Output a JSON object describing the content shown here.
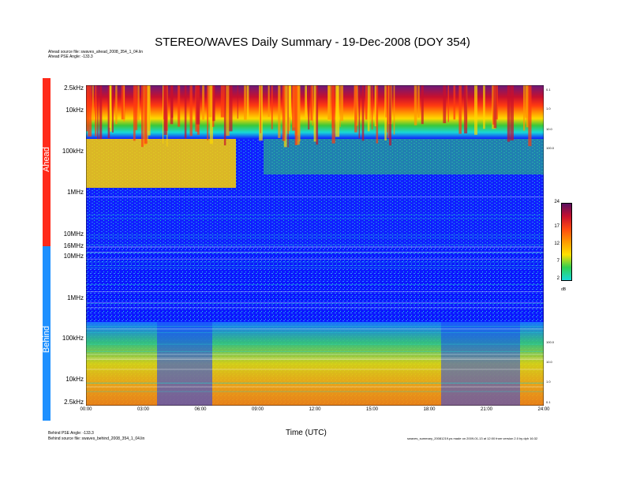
{
  "title": "STEREO/WAVES Daily Summary - 19-Dec-2008 (DOY 354)",
  "ahead_source_line": "Ahead source file: swaves_ahead_2008_354_1_04.lin",
  "ahead_pse_line": "Ahead PSE Angle: -133.3",
  "behind_pse_line": "Behind PSE Angle: -133.3",
  "behind_source_line": "Behind source file: swaves_behind_2008_354_1_04.lin",
  "footer_right_line": "swaves_summary_20081219.ps made on 2009-01-13 at 12:00 from version 2.0 by dph 16:32",
  "panels": {
    "ahead_label": "Ahead",
    "behind_label": "Behind"
  },
  "colors": {
    "ahead": "#ff2a1a",
    "behind": "#1e90ff"
  },
  "chart_data": {
    "type": "heatmap",
    "title": "STEREO/WAVES Daily Summary - 19-Dec-2008 (DOY 354)",
    "xlabel": "Time (UTC)",
    "x_ticks": [
      "00:00",
      "03:00",
      "06:00",
      "09:00",
      "12:00",
      "15:00",
      "18:00",
      "21:00",
      "24:00"
    ],
    "xlim": [
      "00:00",
      "24:00"
    ],
    "ahead_y_ticks": [
      "2.5kHz",
      "10kHz",
      "100kHz",
      "1MHz",
      "10MHz",
      "16MHz"
    ],
    "behind_y_ticks": [
      "10MHz",
      "1MHz",
      "100kHz",
      "10kHz",
      "2.5kHz"
    ],
    "ahead_right_ticks": [
      "0.1",
      "1.0",
      "10.0",
      "100.0"
    ],
    "behind_right_ticks": [
      "100.0",
      "10.0",
      "1.0",
      "0.1"
    ],
    "colorbar": {
      "unit": "dB",
      "ticks": [
        "24",
        "17",
        "12",
        "7",
        "2"
      ],
      "range": [
        2,
        24
      ]
    },
    "series": [
      {
        "name": "Ahead",
        "frequency_range": [
          "2.5kHz",
          "16MHz"
        ],
        "time_range": [
          "00:00",
          "24:00"
        ]
      },
      {
        "name": "Behind",
        "frequency_range": [
          "2.5kHz",
          "16MHz"
        ],
        "time_range": [
          "00:00",
          "24:00"
        ]
      }
    ]
  }
}
